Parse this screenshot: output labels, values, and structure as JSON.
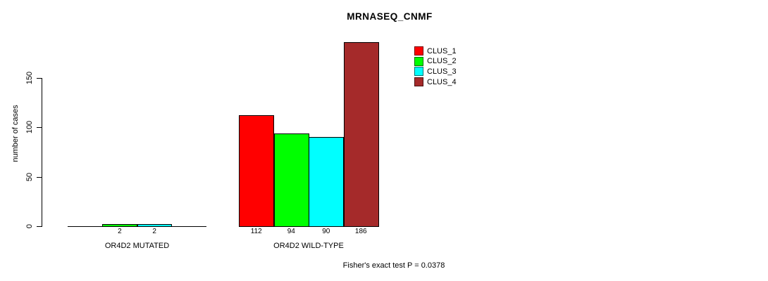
{
  "title": "MRNASEQ_CNMF",
  "ylabel": "number of cases",
  "footer": "Fisher's exact test P = 0.0378",
  "chart_data": {
    "type": "bar",
    "title": "MRNASEQ_CNMF",
    "xlabel": "",
    "ylabel": "number of cases",
    "categories": [
      "OR4D2 MUTATED",
      "OR4D2 WILD-TYPE"
    ],
    "series": [
      {
        "name": "CLUS_1",
        "color": "#FF0000",
        "values": [
          0,
          112
        ]
      },
      {
        "name": "CLUS_2",
        "color": "#00FF00",
        "values": [
          2,
          94
        ]
      },
      {
        "name": "CLUS_3",
        "color": "#00FFFF",
        "values": [
          2,
          90
        ]
      },
      {
        "name": "CLUS_4",
        "color": "#A52A2A",
        "values": [
          0,
          186
        ]
      }
    ],
    "bar_value_labels": [
      [
        "",
        "2",
        "2",
        ""
      ],
      [
        "112",
        "94",
        "90",
        "186"
      ]
    ],
    "yticks": [
      0,
      50,
      100,
      150
    ],
    "ylim": [
      0,
      186
    ],
    "grid": false,
    "legend_position": "top-right",
    "annotation": "Fisher's exact test P = 0.0378"
  }
}
